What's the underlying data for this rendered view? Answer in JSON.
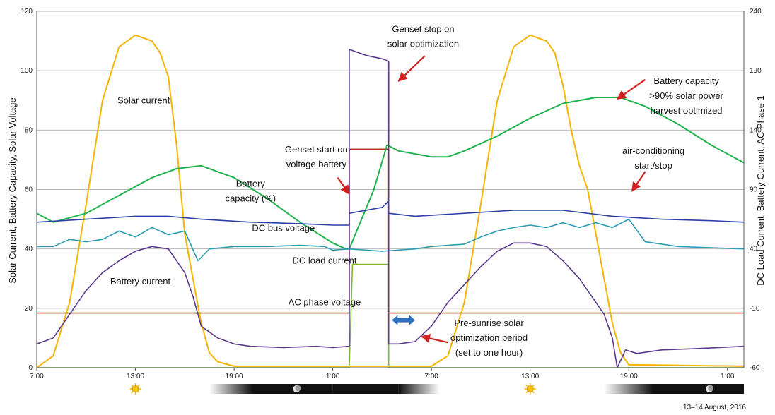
{
  "chart_data": {
    "type": "line",
    "ylabel_left": "Solar Current, Battery Capacity, Solar Voltage",
    "ylabel_right": "DC Load Current, Battery Current, AC Phase 1",
    "footnote": "13–14 August, 2016",
    "ylim_left": [
      0,
      120
    ],
    "ylim_right": [
      -60,
      240
    ],
    "y_ticks_left": [
      "0",
      "20",
      "40",
      "60",
      "80",
      "100",
      "120"
    ],
    "y_ticks_right": [
      "-60",
      "-10",
      "40",
      "90",
      "140",
      "190",
      "240"
    ],
    "xlim_hours": [
      7,
      50
    ],
    "x_ticks": [
      {
        "h": 7,
        "label": "7:00"
      },
      {
        "h": 13,
        "label": "13:00"
      },
      {
        "h": 19,
        "label": "19:00"
      },
      {
        "h": 25,
        "label": "1:00"
      },
      {
        "h": 31,
        "label": "7:00"
      },
      {
        "h": 37,
        "label": "13:00"
      },
      {
        "h": 43,
        "label": "19:00"
      },
      {
        "h": 49,
        "label": "1:00"
      }
    ],
    "colors": {
      "solar": "#f5b400",
      "battery_capacity": "#1eb34c",
      "dc_bus": "#2b3fa8",
      "dc_load": "#2a9bb0",
      "battery_current": "#5b3a8e",
      "ac_phase": "#c0302a",
      "genset": "#7ab83a",
      "arrow": "#d22020",
      "bidir": "#2e6fbf"
    },
    "series": [
      {
        "key": "solar",
        "name": "Solar current",
        "axis": "left",
        "points": [
          [
            7,
            0
          ],
          [
            8,
            4
          ],
          [
            9,
            22
          ],
          [
            10,
            55
          ],
          [
            11,
            90
          ],
          [
            12,
            108
          ],
          [
            13,
            112
          ],
          [
            14,
            110
          ],
          [
            14.5,
            106
          ],
          [
            15,
            98
          ],
          [
            15.5,
            75
          ],
          [
            16,
            45
          ],
          [
            16.5,
            30
          ],
          [
            17,
            15
          ],
          [
            17.5,
            5
          ],
          [
            18,
            2
          ],
          [
            19,
            0.5
          ],
          [
            31,
            0.5
          ],
          [
            32,
            4
          ],
          [
            33,
            22
          ],
          [
            34,
            55
          ],
          [
            35,
            90
          ],
          [
            36,
            108
          ],
          [
            37,
            112
          ],
          [
            38,
            110
          ],
          [
            38.5,
            106
          ],
          [
            39,
            95
          ],
          [
            39.5,
            80
          ],
          [
            40,
            68
          ],
          [
            40.5,
            60
          ],
          [
            41,
            45
          ],
          [
            41.5,
            30
          ],
          [
            42,
            15
          ],
          [
            42.5,
            5
          ],
          [
            43,
            1
          ],
          [
            50,
            0.5
          ]
        ]
      },
      {
        "key": "battery_capacity",
        "name": "Battery capacity (%)",
        "axis": "left",
        "points": [
          [
            7,
            52
          ],
          [
            8,
            49
          ],
          [
            10,
            52
          ],
          [
            12,
            58
          ],
          [
            14,
            64
          ],
          [
            15.5,
            67
          ],
          [
            17,
            68
          ],
          [
            19,
            64
          ],
          [
            21,
            57
          ],
          [
            23,
            49
          ],
          [
            25,
            42
          ],
          [
            25.8,
            40
          ],
          [
            26,
            40
          ],
          [
            27.5,
            60
          ],
          [
            28.3,
            75
          ],
          [
            29,
            73
          ],
          [
            31,
            71
          ],
          [
            32,
            71
          ],
          [
            33,
            73
          ],
          [
            35,
            78
          ],
          [
            37,
            84
          ],
          [
            39,
            89
          ],
          [
            41,
            91
          ],
          [
            42.5,
            91
          ],
          [
            44,
            88
          ],
          [
            46,
            82
          ],
          [
            48,
            75
          ],
          [
            50,
            69
          ]
        ]
      },
      {
        "key": "dc_bus",
        "name": "DC bus voltage",
        "axis": "left",
        "points": [
          [
            7,
            49
          ],
          [
            10,
            50
          ],
          [
            13,
            51
          ],
          [
            15,
            51
          ],
          [
            17,
            50
          ],
          [
            20,
            49
          ],
          [
            23,
            48.5
          ],
          [
            25,
            48
          ],
          [
            26,
            48
          ],
          [
            26,
            52
          ],
          [
            28,
            54
          ],
          [
            28.4,
            56
          ],
          [
            28.4,
            52
          ],
          [
            30,
            51
          ],
          [
            33,
            52
          ],
          [
            36,
            53
          ],
          [
            39,
            53
          ],
          [
            42,
            51
          ],
          [
            45,
            50
          ],
          [
            48,
            49.5
          ],
          [
            50,
            49
          ]
        ]
      },
      {
        "key": "dc_load",
        "name": "DC load current",
        "axis": "right",
        "points": [
          [
            7,
            42
          ],
          [
            8,
            42
          ],
          [
            9,
            48
          ],
          [
            10,
            46
          ],
          [
            11,
            48
          ],
          [
            12,
            55
          ],
          [
            13,
            50
          ],
          [
            14,
            58
          ],
          [
            15,
            52
          ],
          [
            16,
            55
          ],
          [
            16.8,
            30
          ],
          [
            17.5,
            40
          ],
          [
            19,
            42
          ],
          [
            21,
            42
          ],
          [
            23,
            43
          ],
          [
            24.5,
            42
          ],
          [
            25,
            39
          ],
          [
            26,
            40
          ],
          [
            28,
            38
          ],
          [
            30,
            40
          ],
          [
            31,
            42
          ],
          [
            33,
            44
          ],
          [
            34,
            50
          ],
          [
            35,
            55
          ],
          [
            36,
            58
          ],
          [
            37,
            60
          ],
          [
            38,
            58
          ],
          [
            39,
            62
          ],
          [
            40,
            58
          ],
          [
            41,
            62
          ],
          [
            42,
            58
          ],
          [
            43,
            65
          ],
          [
            44,
            46
          ],
          [
            46,
            42
          ],
          [
            48,
            41
          ],
          [
            50,
            40
          ]
        ]
      },
      {
        "key": "battery_current",
        "name": "Battery current",
        "axis": "right",
        "points": [
          [
            7,
            -40
          ],
          [
            8,
            -35
          ],
          [
            9,
            -15
          ],
          [
            10,
            5
          ],
          [
            11,
            20
          ],
          [
            12,
            30
          ],
          [
            13,
            38
          ],
          [
            14,
            42
          ],
          [
            15,
            40
          ],
          [
            15.5,
            30
          ],
          [
            16,
            20
          ],
          [
            16.5,
            0
          ],
          [
            17,
            -25
          ],
          [
            17.5,
            -30
          ],
          [
            18,
            -35
          ],
          [
            19,
            -40
          ],
          [
            20,
            -42
          ],
          [
            22,
            -43
          ],
          [
            24,
            -42
          ],
          [
            25,
            -43
          ],
          [
            26,
            -42
          ],
          [
            26,
            208
          ],
          [
            27,
            203
          ],
          [
            28,
            200
          ],
          [
            28.4,
            198
          ],
          [
            28.4,
            -40
          ],
          [
            29,
            -40
          ],
          [
            30,
            -38
          ],
          [
            31,
            -25
          ],
          [
            32,
            -5
          ],
          [
            33,
            10
          ],
          [
            34,
            25
          ],
          [
            35,
            38
          ],
          [
            36,
            45
          ],
          [
            37,
            45
          ],
          [
            38,
            42
          ],
          [
            39,
            30
          ],
          [
            40,
            15
          ],
          [
            41,
            -5
          ],
          [
            41.5,
            -15
          ],
          [
            42,
            -35
          ],
          [
            42.3,
            -60
          ],
          [
            42.8,
            -45
          ],
          [
            43.5,
            -48
          ],
          [
            45,
            -45
          ],
          [
            47,
            -44
          ],
          [
            50,
            -42
          ]
        ]
      },
      {
        "key": "ac_phase",
        "name": "AC phase voltage",
        "axis": "right",
        "points": [
          [
            7,
            -14
          ],
          [
            26,
            -14
          ],
          [
            26,
            124
          ],
          [
            28.4,
            124
          ],
          [
            28.4,
            -14
          ],
          [
            50,
            -14
          ]
        ]
      },
      {
        "key": "genset",
        "name": "",
        "axis": "right",
        "points": [
          [
            7,
            -60
          ],
          [
            26,
            -60
          ],
          [
            26,
            -60
          ],
          [
            26.2,
            27
          ],
          [
            28.4,
            27
          ],
          [
            28.4,
            -60
          ],
          [
            50,
            -60
          ]
        ]
      }
    ],
    "annotations": [
      {
        "text": "Solar current",
        "h": 13.5,
        "y": 89
      },
      {
        "text": "Battery",
        "h": 20,
        "y": 61
      },
      {
        "text": "capacity (%)",
        "h": 20,
        "y": 56
      },
      {
        "text": "DC bus voltage",
        "h": 22,
        "y": 46
      },
      {
        "text": "DC load current",
        "h": 24.5,
        "y": 35
      },
      {
        "text": "Battery current",
        "h": 13.3,
        "y": 28
      },
      {
        "text": "AC phase voltage",
        "h": 24.5,
        "y": 21
      },
      {
        "text": "Genset start on",
        "h": 24,
        "y": 72.5
      },
      {
        "text": "voltage battery",
        "h": 24,
        "y": 67.5
      },
      {
        "text": "Genset stop on",
        "h": 30.5,
        "y": 113
      },
      {
        "text": "solar optimization",
        "h": 30.5,
        "y": 108
      },
      {
        "text": "Battery capacity",
        "h": 46.5,
        "y": 95.5
      },
      {
        "text": ">90% solar power",
        "h": 46.5,
        "y": 90.5
      },
      {
        "text": "harvest optimized",
        "h": 46.5,
        "y": 85.5
      },
      {
        "text": "air-conditioning",
        "h": 44.5,
        "y": 72
      },
      {
        "text": "start/stop",
        "h": 44.5,
        "y": 67
      },
      {
        "text": "Pre-sunrise solar",
        "h": 34.5,
        "y": 14
      },
      {
        "text": "optimization period",
        "h": 34.5,
        "y": 9
      },
      {
        "text": "(set to one hour)",
        "h": 34.5,
        "y": 4
      }
    ]
  }
}
